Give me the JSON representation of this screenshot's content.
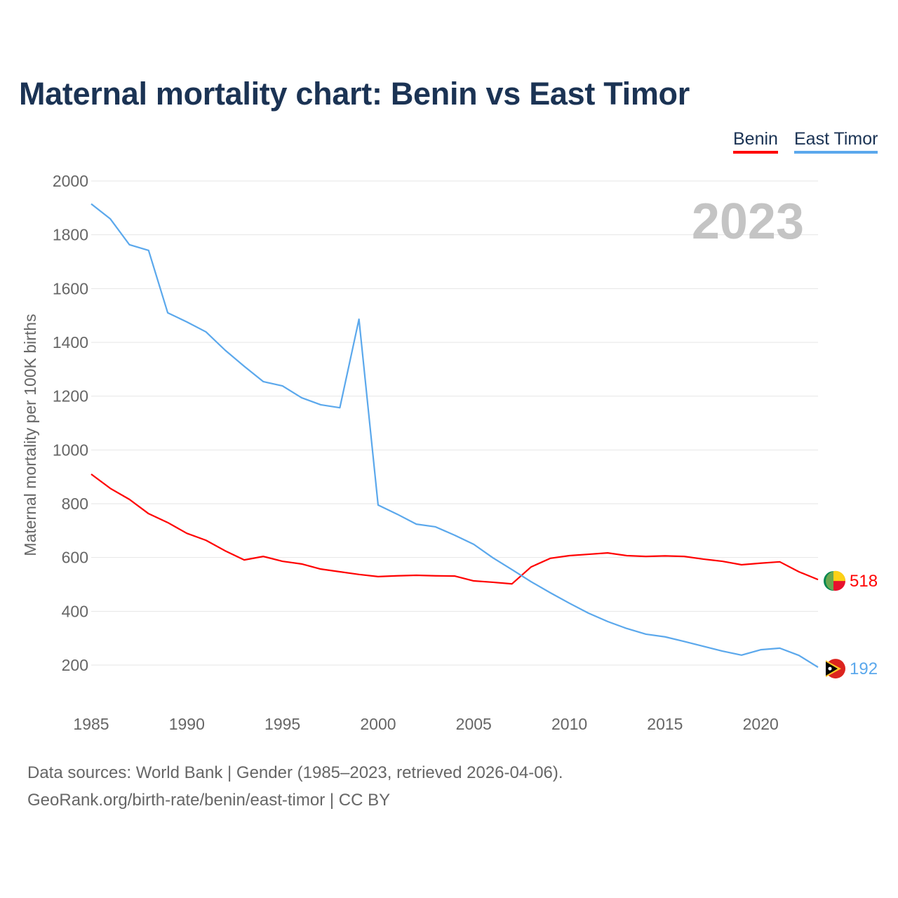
{
  "chart_data": {
    "type": "line",
    "title": "Maternal mortality chart: Benin vs East Timor",
    "ylabel": "Maternal mortality per 100K births",
    "xlabel": "",
    "year_watermark": "2023",
    "xlim": [
      1985,
      2023
    ],
    "ylim": [
      200,
      2000
    ],
    "x_ticks": [
      1985,
      1990,
      1995,
      2000,
      2005,
      2010,
      2015,
      2020
    ],
    "y_ticks": [
      200,
      400,
      600,
      800,
      1000,
      1200,
      1400,
      1600,
      1800,
      2000
    ],
    "grid": true,
    "legend_position": "top-right",
    "x": [
      1985,
      1986,
      1987,
      1988,
      1989,
      1990,
      1991,
      1992,
      1993,
      1994,
      1995,
      1996,
      1997,
      1998,
      1999,
      2000,
      2001,
      2002,
      2003,
      2004,
      2005,
      2006,
      2007,
      2008,
      2009,
      2010,
      2011,
      2012,
      2013,
      2014,
      2015,
      2016,
      2017,
      2018,
      2019,
      2020,
      2021,
      2022,
      2023
    ],
    "series": [
      {
        "name": "Benin",
        "color": "#ff0000",
        "end_label": "518",
        "values": [
          910,
          857,
          816,
          763,
          730,
          690,
          664,
          625,
          591,
          604,
          586,
          576,
          557,
          547,
          537,
          529,
          532,
          534,
          532,
          531,
          513,
          508,
          502,
          565,
          597,
          607,
          612,
          617,
          607,
          604,
          606,
          604,
          594,
          586,
          573,
          579,
          584,
          547,
          518
        ]
      },
      {
        "name": "East Timor",
        "color": "#5ba8ec",
        "end_label": "192",
        "values": [
          1915,
          1859,
          1763,
          1742,
          1510,
          1476,
          1439,
          1371,
          1311,
          1254,
          1238,
          1194,
          1168,
          1157,
          1486,
          795,
          761,
          724,
          714,
          683,
          649,
          599,
          555,
          510,
          469,
          430,
          393,
          362,
          336,
          315,
          305,
          288,
          270,
          252,
          237,
          257,
          263,
          236,
          192
        ]
      }
    ]
  },
  "footer": {
    "line1": "Data sources: World Bank | Gender (1985–2023, retrieved 2026-04-06).",
    "line2": "GeoRank.org/birth-rate/benin/east-timor | CC BY"
  }
}
